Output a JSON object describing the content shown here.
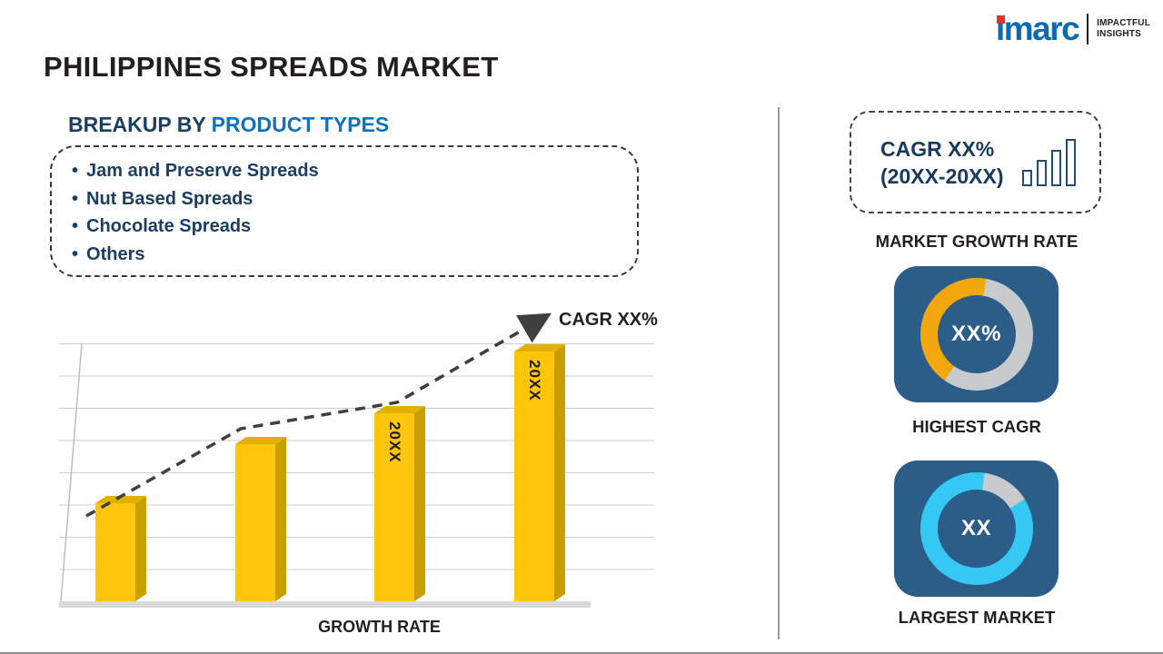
{
  "colors": {
    "accent_blue": "#1172BA",
    "navy": "#1B3F63",
    "text_dark": "#231F20",
    "bar_yellow": "#FFC60B",
    "bar_side": "#C99F00",
    "card_blue": "#2C5D89",
    "donut_gray": "#C8CBCE",
    "donut_orange": "#F2A70C",
    "donut_cyan": "#35C8F5",
    "logo_blue": "#0A6BB5",
    "logo_red": "#E4322B"
  },
  "icons": {
    "growth": "ascending-bar-chart-icon",
    "logo_accent": "red-square-accent-icon",
    "trend": "dashed-arrow-up-icon"
  },
  "header": {
    "title": "PHILIPPINES SPREADS MARKET",
    "logo": {
      "brand": "imarc",
      "tagline_line1": "IMPACTFUL",
      "tagline_line2": "INSIGHTS"
    }
  },
  "breakup": {
    "heading_prefix": "BREAKUP BY",
    "heading_highlight": "PRODUCT TYPES",
    "items": [
      "Jam and Preserve Spreads",
      "Nut Based Spreads",
      "Chocolate Spreads",
      "Others"
    ]
  },
  "chart_data": {
    "type": "bar",
    "title": "",
    "categories": [
      "",
      "",
      "20XX",
      "20XX"
    ],
    "values": [
      38,
      61,
      73,
      97
    ],
    "ylim": [
      0,
      100
    ],
    "bar_labels": [
      "",
      "",
      "20XX",
      "20XX"
    ],
    "trend_label": "CAGR XX%",
    "xlabel": "GROWTH RATE",
    "ylabel": "",
    "grid": "horizontal gridlines, 3D-style slanted axis",
    "legend": "none"
  },
  "sidebar": {
    "cagr_box": {
      "line1": "CAGR XX%",
      "line2": "(20XX-20XX)"
    },
    "market_growth_rate_label": "MARKET GROWTH RATE",
    "highest_cagr": {
      "value": "XX%",
      "label": "HIGHEST CAGR"
    },
    "largest_market": {
      "value": "XX",
      "label": "LARGEST MARKET"
    }
  }
}
